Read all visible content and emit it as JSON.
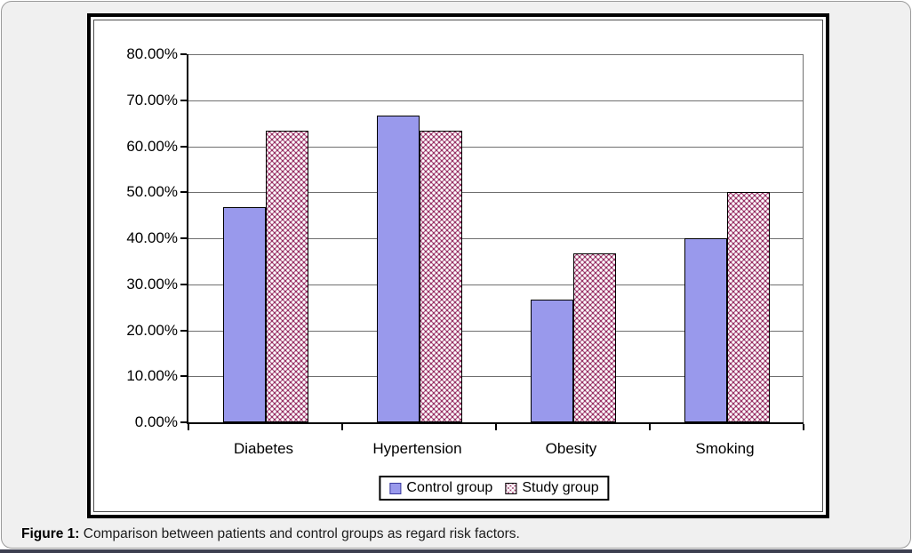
{
  "page": {
    "caption_prefix": "Figure 1:",
    "caption_text": " Comparison between patients and control groups as regard risk factors."
  },
  "chart_data": {
    "type": "bar",
    "title": "",
    "xlabel": "",
    "ylabel": "",
    "categories": [
      "Diabetes",
      "Hypertension",
      "Obesity",
      "Smoking"
    ],
    "series": [
      {
        "name": "Control group",
        "values": [
          46.7,
          66.7,
          26.7,
          40.0
        ],
        "fill": "#9999ec",
        "pattern": false
      },
      {
        "name": "Study group",
        "values": [
          63.3,
          63.3,
          36.7,
          50.0
        ],
        "fill": "#993366",
        "pattern": true
      }
    ],
    "ylim": [
      0,
      80
    ],
    "ytick_step": 10,
    "ytick_labels": [
      "80.00%",
      "70.00%",
      "60.00%",
      "50.00%",
      "40.00%",
      "30.00%",
      "20.00%",
      "10.00%",
      "0.00%"
    ],
    "grid": "horizontal",
    "legend_position": "bottom"
  },
  "colors": {
    "control_fill": "#9999ec",
    "control_swatch_border": "#3a3a9e",
    "study_fill": "#993366",
    "study_pattern_dot": "#ffffff",
    "bar_border": "#000000",
    "gridline": "#6f6f6f",
    "axis": "#000000",
    "page_background": "#f0f0f0",
    "bottom_strip": "#3d3f50"
  }
}
